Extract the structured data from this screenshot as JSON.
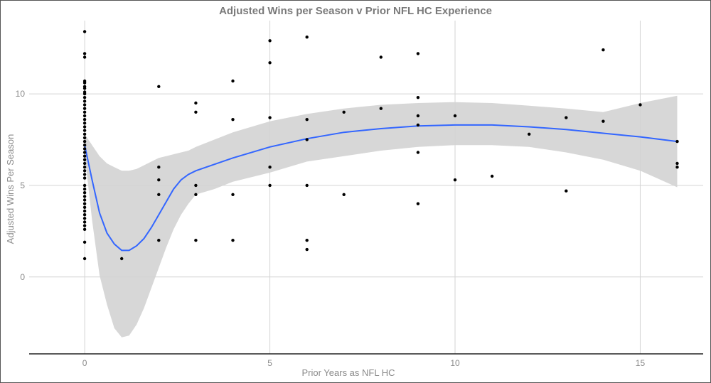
{
  "chart_data": {
    "type": "scatter",
    "title": "Adjusted Wins per Season v Prior NFL HC Experience",
    "xlabel": "Prior Years as NFL HC",
    "ylabel": "Adjusted Wins Per Season",
    "xlim": [
      -1.5,
      16.7
    ],
    "ylim": [
      -4.2,
      14.0
    ],
    "x_ticks": [
      0,
      5,
      10,
      15
    ],
    "y_ticks": [
      0,
      5,
      10
    ],
    "grid": true,
    "legend": "none",
    "colors": {
      "points": "#000000",
      "smooth_line": "#3366ff",
      "confidence_band": "#d3d3d3"
    },
    "points": [
      [
        0,
        13.4
      ],
      [
        0,
        12.2
      ],
      [
        0,
        12.0
      ],
      [
        0,
        10.7
      ],
      [
        0,
        10.6
      ],
      [
        0,
        10.4
      ],
      [
        0,
        10.3
      ],
      [
        0,
        10.1
      ],
      [
        0,
        10.0
      ],
      [
        0,
        9.8
      ],
      [
        0,
        9.6
      ],
      [
        0,
        9.4
      ],
      [
        0,
        9.2
      ],
      [
        0,
        9.0
      ],
      [
        0,
        8.8
      ],
      [
        0,
        8.6
      ],
      [
        0,
        8.4
      ],
      [
        0,
        8.2
      ],
      [
        0,
        8.0
      ],
      [
        0,
        7.8
      ],
      [
        0,
        7.6
      ],
      [
        0,
        7.4
      ],
      [
        0,
        7.2
      ],
      [
        0,
        7.0
      ],
      [
        0,
        6.8
      ],
      [
        0,
        6.6
      ],
      [
        0,
        6.4
      ],
      [
        0,
        6.2
      ],
      [
        0,
        6.0
      ],
      [
        0,
        5.8
      ],
      [
        0,
        5.6
      ],
      [
        0,
        5.4
      ],
      [
        0,
        5.0
      ],
      [
        0,
        4.8
      ],
      [
        0,
        4.6
      ],
      [
        0,
        4.4
      ],
      [
        0,
        4.2
      ],
      [
        0,
        4.0
      ],
      [
        0,
        3.8
      ],
      [
        0,
        3.6
      ],
      [
        0,
        3.4
      ],
      [
        0,
        3.2
      ],
      [
        0,
        3.0
      ],
      [
        0,
        2.8
      ],
      [
        0,
        2.6
      ],
      [
        0,
        1.9
      ],
      [
        0,
        1.0
      ],
      [
        1,
        1.0
      ],
      [
        2,
        10.4
      ],
      [
        2,
        6.0
      ],
      [
        2,
        5.3
      ],
      [
        2,
        4.5
      ],
      [
        2,
        2.0
      ],
      [
        3,
        9.5
      ],
      [
        3,
        9.0
      ],
      [
        3,
        5.0
      ],
      [
        3,
        4.5
      ],
      [
        3,
        2.0
      ],
      [
        4,
        10.7
      ],
      [
        4,
        8.6
      ],
      [
        4,
        4.5
      ],
      [
        4,
        2.0
      ],
      [
        5,
        12.9
      ],
      [
        5,
        11.7
      ],
      [
        5,
        8.7
      ],
      [
        5,
        6.0
      ],
      [
        5,
        5.0
      ],
      [
        6,
        13.1
      ],
      [
        6,
        8.6
      ],
      [
        6,
        7.5
      ],
      [
        6,
        5.0
      ],
      [
        6,
        2.0
      ],
      [
        6,
        1.5
      ],
      [
        7,
        9.0
      ],
      [
        7,
        4.5
      ],
      [
        8,
        12.0
      ],
      [
        8,
        9.2
      ],
      [
        9,
        12.2
      ],
      [
        9,
        9.8
      ],
      [
        9,
        8.8
      ],
      [
        9,
        8.3
      ],
      [
        9,
        6.8
      ],
      [
        9,
        4.0
      ],
      [
        10,
        8.8
      ],
      [
        10,
        5.3
      ],
      [
        11,
        5.5
      ],
      [
        12,
        7.8
      ],
      [
        13,
        8.7
      ],
      [
        13,
        4.7
      ],
      [
        14,
        12.4
      ],
      [
        14,
        8.5
      ],
      [
        15,
        9.4
      ],
      [
        16,
        7.4
      ],
      [
        16,
        6.2
      ],
      [
        16,
        6.0
      ]
    ],
    "smooth": {
      "x": [
        0,
        0.2,
        0.4,
        0.6,
        0.8,
        1.0,
        1.2,
        1.4,
        1.6,
        1.8,
        2.0,
        2.2,
        2.4,
        2.6,
        2.8,
        3.0,
        3.5,
        4.0,
        5.0,
        6.0,
        7.0,
        8.0,
        9.0,
        10.0,
        11.0,
        12.0,
        13.0,
        14.0,
        15.0,
        16.0
      ],
      "y": [
        7.2,
        5.3,
        3.5,
        2.4,
        1.8,
        1.45,
        1.45,
        1.7,
        2.1,
        2.7,
        3.4,
        4.1,
        4.8,
        5.3,
        5.6,
        5.8,
        6.15,
        6.5,
        7.1,
        7.55,
        7.9,
        8.1,
        8.25,
        8.3,
        8.3,
        8.2,
        8.05,
        7.85,
        7.65,
        7.4
      ],
      "upper": [
        7.8,
        7.2,
        6.6,
        6.2,
        6.0,
        5.8,
        5.8,
        5.9,
        6.1,
        6.3,
        6.5,
        6.6,
        6.7,
        6.8,
        6.9,
        7.1,
        7.5,
        7.9,
        8.5,
        8.9,
        9.2,
        9.4,
        9.5,
        9.55,
        9.5,
        9.35,
        9.2,
        9.0,
        9.5,
        9.9
      ],
      "lower": [
        6.7,
        3.1,
        0.1,
        -1.5,
        -2.8,
        -3.3,
        -3.2,
        -2.6,
        -1.7,
        -0.6,
        0.5,
        1.6,
        2.6,
        3.4,
        4.0,
        4.5,
        4.8,
        5.2,
        5.7,
        6.3,
        6.6,
        6.9,
        7.1,
        7.2,
        7.2,
        7.1,
        6.8,
        6.4,
        5.8,
        4.9
      ]
    }
  }
}
